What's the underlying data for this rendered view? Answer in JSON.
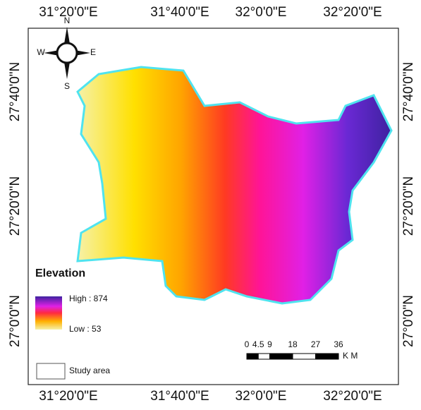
{
  "map": {
    "lon_labels_top": [
      "31°20'0\"E",
      "31°40'0\"E",
      "32°0'0\"E",
      "32°20'0\"E"
    ],
    "lon_labels_bottom": [
      "31°20'0\"E",
      "31°40'0\"E",
      "32°0'0\"E",
      "32°20'0\"E"
    ],
    "lat_labels_left": [
      "27°40'0\"N",
      "27°20'0\"N",
      "27°0'0\"N"
    ],
    "lat_labels_right": [
      "27°40'0\"N",
      "27°20'0\"N",
      "27°0'0\"N"
    ],
    "compass": {
      "north": "N",
      "south": "S",
      "east": "E",
      "west": "W"
    },
    "legend": {
      "title": "Elevation",
      "high": "High : 874",
      "low": "Low : 53",
      "study_area": "Study area"
    },
    "scale_bar": {
      "ticks": [
        0,
        4.5,
        9,
        18,
        27,
        36
      ],
      "unit": "K M"
    }
  }
}
